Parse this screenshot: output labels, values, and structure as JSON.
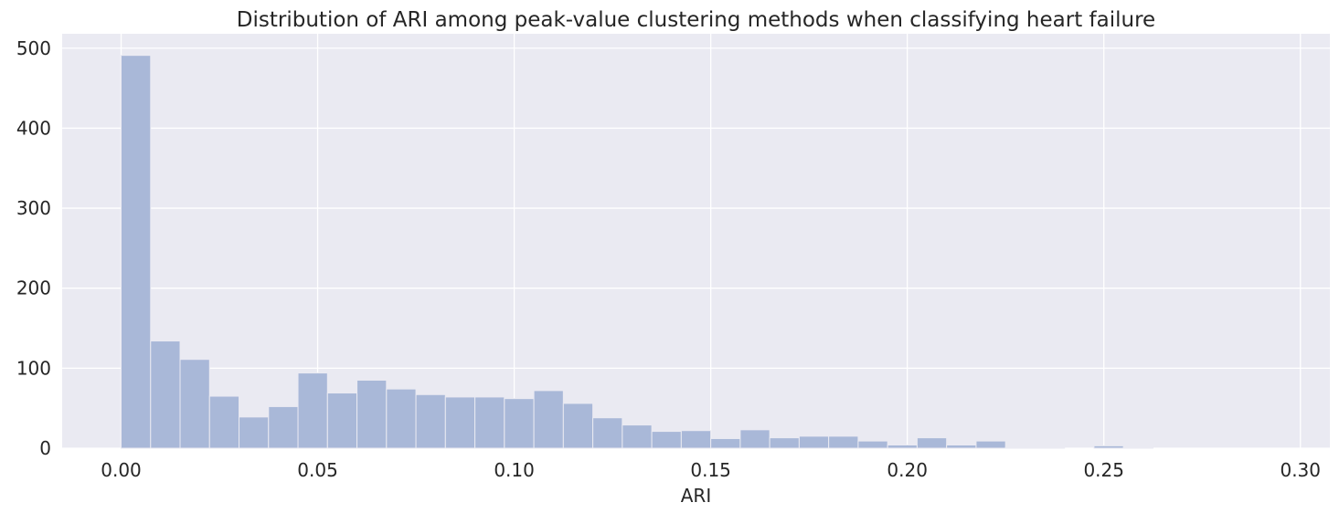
{
  "chart_data": {
    "type": "bar",
    "title": "Distribution of ARI among peak-value clustering methods when classifying heart failure",
    "xlabel": "ARI",
    "ylabel": "",
    "xlim": [
      -0.015,
      0.3075
    ],
    "ylim": [
      0,
      518
    ],
    "x_ticks": [
      0.0,
      0.05,
      0.1,
      0.15,
      0.2,
      0.25,
      0.3
    ],
    "x_tick_labels": [
      "0.00",
      "0.05",
      "0.10",
      "0.15",
      "0.20",
      "0.25",
      "0.30"
    ],
    "y_ticks": [
      0,
      100,
      200,
      300,
      400,
      500
    ],
    "y_tick_labels": [
      "0",
      "100",
      "200",
      "300",
      "400",
      "500"
    ],
    "grid": true,
    "bin_start": 0.0,
    "bin_width": 0.0075,
    "values": [
      491,
      134,
      111,
      65,
      39,
      52,
      94,
      69,
      85,
      74,
      67,
      64,
      64,
      62,
      72,
      56,
      38,
      29,
      21,
      22,
      12,
      23,
      13,
      15,
      15,
      9,
      4,
      13,
      4,
      9,
      1,
      1,
      0,
      3,
      1,
      0,
      0,
      0,
      0,
      0,
      0
    ],
    "colors": {
      "bar": "#a9b8d8",
      "bar_edge": "#eaeaf2",
      "background": "#eaeaf2",
      "grid": "#ffffff"
    }
  }
}
